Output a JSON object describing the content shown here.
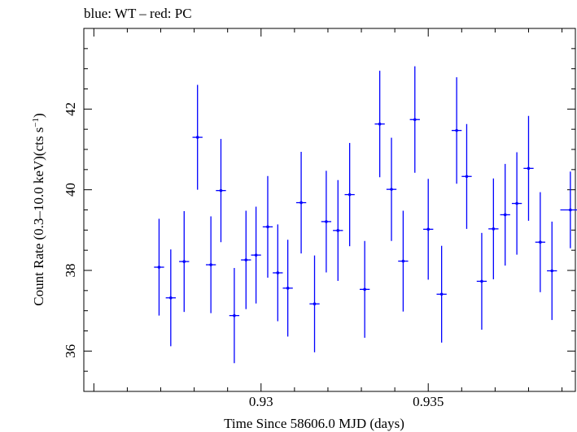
{
  "chart_data": {
    "type": "scatter",
    "title": "blue: WT – red: PC",
    "xlabel": "Time Since 58606.0 MJD (days)",
    "ylabel_main": "Count Rate (0.3–10.0 keV)(cts s",
    "ylabel_sup": "−1",
    "ylabel_end": ")",
    "xlim": [
      0.9247,
      0.9394
    ],
    "ylim": [
      35,
      44
    ],
    "x_ticks": [
      0.93,
      0.935
    ],
    "x_tick_labels": [
      "0.93",
      "0.935"
    ],
    "y_ticks": [
      36,
      38,
      40,
      42
    ],
    "y_tick_labels": [
      "36",
      "38",
      "40",
      "42"
    ],
    "grid": false,
    "series": [
      {
        "color": "#0000ff",
        "points": [
          {
            "x": 0.92695,
            "xerr": 0.00015,
            "y": 38.08,
            "yerr": 1.2
          },
          {
            "x": 0.9273,
            "xerr": 0.00015,
            "y": 37.32,
            "yerr": 1.2
          },
          {
            "x": 0.9277,
            "xerr": 0.00015,
            "y": 38.22,
            "yerr": 1.25
          },
          {
            "x": 0.9281,
            "xerr": 0.00015,
            "y": 41.3,
            "yerr": 1.3
          },
          {
            "x": 0.9285,
            "xerr": 0.00015,
            "y": 38.14,
            "yerr": 1.2
          },
          {
            "x": 0.9288,
            "xerr": 0.00015,
            "y": 39.98,
            "yerr": 1.28
          },
          {
            "x": 0.9292,
            "xerr": 0.00015,
            "y": 36.88,
            "yerr": 1.18
          },
          {
            "x": 0.92955,
            "xerr": 0.00015,
            "y": 38.26,
            "yerr": 1.22
          },
          {
            "x": 0.92985,
            "xerr": 0.00015,
            "y": 38.38,
            "yerr": 1.2
          },
          {
            "x": 0.9302,
            "xerr": 0.00015,
            "y": 39.08,
            "yerr": 1.26
          },
          {
            "x": 0.9305,
            "xerr": 0.00015,
            "y": 37.94,
            "yerr": 1.2
          },
          {
            "x": 0.9308,
            "xerr": 0.00015,
            "y": 37.56,
            "yerr": 1.2
          },
          {
            "x": 0.9312,
            "xerr": 0.00015,
            "y": 39.68,
            "yerr": 1.26
          },
          {
            "x": 0.9316,
            "xerr": 0.00015,
            "y": 37.17,
            "yerr": 1.2
          },
          {
            "x": 0.93195,
            "xerr": 0.00015,
            "y": 39.21,
            "yerr": 1.26
          },
          {
            "x": 0.9323,
            "xerr": 0.00015,
            "y": 38.99,
            "yerr": 1.25
          },
          {
            "x": 0.93265,
            "xerr": 0.00015,
            "y": 39.88,
            "yerr": 1.28
          },
          {
            "x": 0.9331,
            "xerr": 0.00015,
            "y": 37.53,
            "yerr": 1.2
          },
          {
            "x": 0.93355,
            "xerr": 0.00015,
            "y": 41.63,
            "yerr": 1.32
          },
          {
            "x": 0.9339,
            "xerr": 0.00015,
            "y": 40.01,
            "yerr": 1.28
          },
          {
            "x": 0.93425,
            "xerr": 0.00015,
            "y": 38.23,
            "yerr": 1.25
          },
          {
            "x": 0.9346,
            "xerr": 0.00015,
            "y": 41.74,
            "yerr": 1.32
          },
          {
            "x": 0.935,
            "xerr": 0.00015,
            "y": 39.02,
            "yerr": 1.25
          },
          {
            "x": 0.9354,
            "xerr": 0.00015,
            "y": 37.41,
            "yerr": 1.2
          },
          {
            "x": 0.93585,
            "xerr": 0.00015,
            "y": 41.47,
            "yerr": 1.32
          },
          {
            "x": 0.93615,
            "xerr": 0.00015,
            "y": 40.33,
            "yerr": 1.3
          },
          {
            "x": 0.9366,
            "xerr": 0.00015,
            "y": 37.73,
            "yerr": 1.2
          },
          {
            "x": 0.93695,
            "xerr": 0.00015,
            "y": 39.03,
            "yerr": 1.25
          },
          {
            "x": 0.9373,
            "xerr": 0.00015,
            "y": 39.38,
            "yerr": 1.26
          },
          {
            "x": 0.93765,
            "xerr": 0.00015,
            "y": 39.66,
            "yerr": 1.27
          },
          {
            "x": 0.938,
            "xerr": 0.00015,
            "y": 40.53,
            "yerr": 1.3
          },
          {
            "x": 0.93835,
            "xerr": 0.00015,
            "y": 38.7,
            "yerr": 1.24
          },
          {
            "x": 0.9387,
            "xerr": 0.00015,
            "y": 37.99,
            "yerr": 1.22
          },
          {
            "x": 0.93925,
            "xerr": 0.0003,
            "y": 39.5,
            "yerr": 0.95
          }
        ]
      }
    ]
  }
}
